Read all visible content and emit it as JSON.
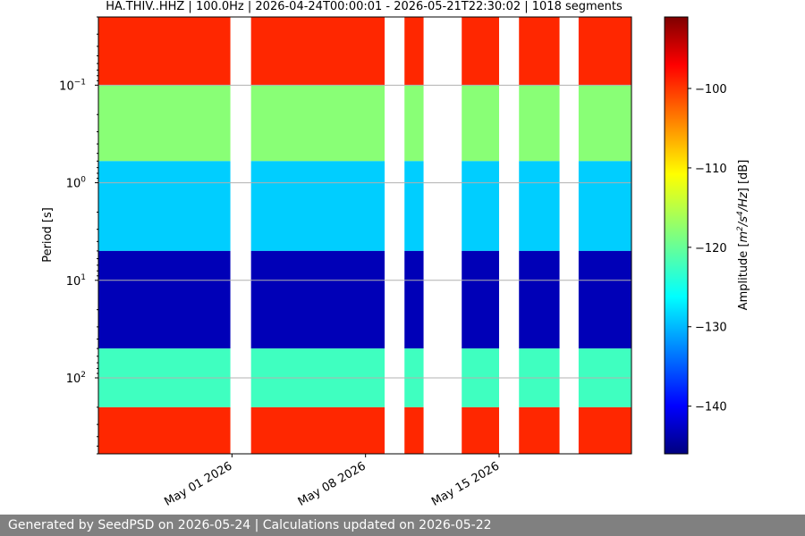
{
  "chart_data": {
    "type": "heatmap",
    "title": "HA.THIV..HHZ | 100.0Hz | 2026-04-24T00:00:01 - 2026-05-21T22:30:02 | 1018 segments",
    "ylabel": "Period [s]",
    "ylabel_scale": "log",
    "ylim": [
      0.02,
      600
    ],
    "y_axis_inverted": true,
    "grid": true,
    "xlim": [
      "2026-04-24",
      "2026-05-21T22:30"
    ],
    "x_ticks": [
      {
        "date": "2026-05-01",
        "label": "May 01 2026"
      },
      {
        "date": "2026-05-08",
        "label": "May 08 2026"
      },
      {
        "date": "2026-05-15",
        "label": "May 15 2026"
      }
    ],
    "y_ticks": [
      {
        "value": 0.1,
        "base": "10",
        "exp": "−1"
      },
      {
        "value": 1,
        "base": "10",
        "exp": "0"
      },
      {
        "value": 10,
        "base": "10",
        "exp": "1"
      },
      {
        "value": 100,
        "base": "10",
        "exp": "2"
      }
    ],
    "data_gaps": [
      {
        "start": "2026-04-30T22:00",
        "end": "2026-05-02T00:00"
      },
      {
        "start": "2026-05-09T00:00",
        "end": "2026-05-10T01:00"
      },
      {
        "start": "2026-05-11T01:00",
        "end": "2026-05-13T01:00"
      },
      {
        "start": "2026-05-15T00:00",
        "end": "2026-05-16T01:00"
      },
      {
        "start": "2026-05-18T04:00",
        "end": "2026-05-19T04:00"
      }
    ],
    "period_bands_dB": [
      {
        "period_range": [
          0.02,
          0.1
        ],
        "amplitude_db": -100
      },
      {
        "period_range": [
          0.1,
          0.6
        ],
        "amplitude_db": -118
      },
      {
        "period_range": [
          0.6,
          5
        ],
        "amplitude_db": -128
      },
      {
        "period_range": [
          5,
          50
        ],
        "amplitude_db": -143
      },
      {
        "period_range": [
          50,
          200
        ],
        "amplitude_db": -122
      },
      {
        "period_range": [
          200,
          600
        ],
        "amplitude_db": -100
      }
    ],
    "colorbar": {
      "label_prefix": "Amplitude [",
      "label_unit_m": "m",
      "label_exp_2": "2",
      "label_slash_s": "/s",
      "label_exp_4": "4",
      "label_hz": "/Hz",
      "label_suffix": "] [dB]",
      "range": [
        -146,
        -91
      ],
      "colormap": "jet",
      "ticks": [
        {
          "value": -100,
          "label": "−100"
        },
        {
          "value": -110,
          "label": "−110"
        },
        {
          "value": -120,
          "label": "−120"
        },
        {
          "value": -130,
          "label": "−130"
        },
        {
          "value": -140,
          "label": "−140"
        }
      ]
    }
  },
  "footer": {
    "text": "Generated by SeedPSD on 2026-05-24 | Calculations updated on 2026-05-22",
    "background": "#808080"
  }
}
